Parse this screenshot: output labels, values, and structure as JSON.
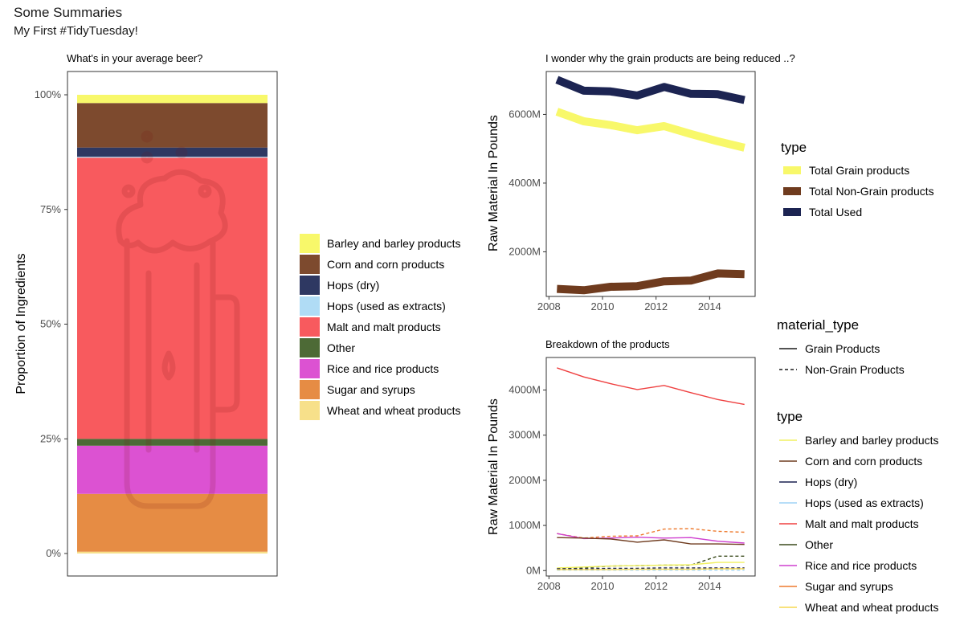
{
  "page": {
    "title": "Some Summaries",
    "subtitle": "My First #TidyTuesday!"
  },
  "colors": {
    "Barley and barley products": "#f8f86a",
    "Corn and corn products": "#7d4a2e",
    "Hops (dry)": "#2e3862",
    "Hops (used as extracts)": "#b0dcf5",
    "Malt and malt products": "#f85a5e",
    "Other": "#4d6a36",
    "Rice and rice products": "#dc52d2",
    "Sugar and syrups": "#e68c44",
    "Wheat and wheat products": "#f7e08a",
    "line_Barley and barley products": "#f0f060",
    "line_Corn and corn products": "#6f3b1e",
    "line_Hops (dry)": "#1a2050",
    "line_Hops (used as extracts)": "#9fd4f5",
    "line_Malt and malt products": "#ef4040",
    "line_Other": "#3a4a1c",
    "line_Rice and rice products": "#cf40cf",
    "line_Sugar and syrups": "#ee7a2e",
    "line_Wheat and wheat products": "#f5d850",
    "Total Grain products": "#f8f86a",
    "Total Non-Grain products": "#6f3b1e",
    "Total Used": "#1c2452"
  },
  "chart_data": [
    {
      "id": "ingredients",
      "type": "bar",
      "title": "What's in your average beer?",
      "xlabel": "",
      "ylabel": "Proportion of Ingredients",
      "ylim": [
        0,
        1.05
      ],
      "yticks": [
        {
          "value": 0,
          "label": "0%"
        },
        {
          "value": 0.25,
          "label": "25%"
        },
        {
          "value": 0.5,
          "label": "50%"
        },
        {
          "value": 0.75,
          "label": "75%"
        },
        {
          "value": 1,
          "label": "100%"
        }
      ],
      "stacked_from_bottom": [
        {
          "name": "Wheat and wheat products",
          "value": 0.004
        },
        {
          "name": "Sugar and syrups",
          "value": 0.126
        },
        {
          "name": "Rice and rice products",
          "value": 0.105
        },
        {
          "name": "Other",
          "value": 0.015
        },
        {
          "name": "Malt and malt products",
          "value": 0.613
        },
        {
          "name": "Hops (used as extracts)",
          "value": 0.002
        },
        {
          "name": "Hops (dry)",
          "value": 0.02
        },
        {
          "name": "Corn and corn products",
          "value": 0.097
        },
        {
          "name": "Barley and barley products",
          "value": 0.018
        }
      ],
      "legend": {
        "placement": "right",
        "items": [
          "Barley and barley products",
          "Corn and corn products",
          "Hops (dry)",
          "Hops (used as extracts)",
          "Malt and malt products",
          "Other",
          "Rice and rice products",
          "Sugar and syrups",
          "Wheat and wheat products"
        ]
      },
      "background_icon": "beer-mug-icon",
      "grid": false
    },
    {
      "id": "totals",
      "type": "line",
      "title": "I wonder why the grain products are being reduced ..?",
      "xlabel": "",
      "ylabel": "Raw Material In Pounds",
      "xlim": [
        2007.9,
        2015.7
      ],
      "ylim": [
        700,
        7250
      ],
      "xticks": [
        2008,
        2010,
        2012,
        2014
      ],
      "yticks": [
        {
          "value": 2000,
          "label": "2000M"
        },
        {
          "value": 4000,
          "label": "4000M"
        },
        {
          "value": 6000,
          "label": "6000M"
        }
      ],
      "x": [
        2008.3,
        2009.3,
        2010.3,
        2011.3,
        2012.3,
        2013.3,
        2014.3,
        2015.3
      ],
      "series": [
        {
          "name": "Total Grain products",
          "values": [
            6080,
            5800,
            5690,
            5540,
            5660,
            5430,
            5220,
            5030
          ]
        },
        {
          "name": "Total Non-Grain products",
          "values": [
            920,
            880,
            980,
            1000,
            1140,
            1160,
            1370,
            1350
          ]
        },
        {
          "name": "Total Used",
          "values": [
            7010,
            6690,
            6670,
            6550,
            6800,
            6600,
            6590,
            6420
          ]
        }
      ],
      "legend": {
        "placement": "right",
        "title": "type"
      },
      "grid": false
    },
    {
      "id": "breakdown",
      "type": "line",
      "title": "Breakdown of the products",
      "xlabel": "",
      "ylabel": "Raw Material In Pounds",
      "xlim": [
        2007.9,
        2015.7
      ],
      "ylim": [
        -120,
        4720
      ],
      "xticks": [
        2008,
        2010,
        2012,
        2014
      ],
      "yticks": [
        {
          "value": 0,
          "label": "0M"
        },
        {
          "value": 1000,
          "label": "1000M"
        },
        {
          "value": 2000,
          "label": "2000M"
        },
        {
          "value": 3000,
          "label": "3000M"
        },
        {
          "value": 4000,
          "label": "4000M"
        }
      ],
      "x": [
        2008.3,
        2009.3,
        2010.3,
        2011.3,
        2012.3,
        2013.3,
        2014.3,
        2015.3
      ],
      "series": [
        {
          "name": "Malt and malt products",
          "material_type": "Grain Products",
          "values": [
            4490,
            4290,
            4140,
            4010,
            4100,
            3940,
            3790,
            3680
          ]
        },
        {
          "name": "Sugar and syrups",
          "material_type": "Non-Grain Products",
          "values": [
            820,
            720,
            760,
            770,
            920,
            930,
            870,
            850
          ]
        },
        {
          "name": "Rice and rice products",
          "material_type": "Grain Products",
          "values": [
            820,
            710,
            720,
            740,
            720,
            730,
            650,
            610
          ]
        },
        {
          "name": "Corn and corn products",
          "material_type": "Grain Products",
          "values": [
            730,
            720,
            700,
            630,
            680,
            590,
            590,
            580
          ]
        },
        {
          "name": "Other",
          "material_type": "Non-Grain Products",
          "values": [
            40,
            60,
            100,
            110,
            120,
            120,
            320,
            320
          ]
        },
        {
          "name": "Barley and barley products",
          "material_type": "Grain Products",
          "values": [
            60,
            80,
            100,
            110,
            120,
            130,
            180,
            180
          ]
        },
        {
          "name": "Hops (dry)",
          "material_type": "Non-Grain Products",
          "values": [
            40,
            40,
            50,
            50,
            60,
            60,
            60,
            60
          ]
        },
        {
          "name": "Hops (used as extracts)",
          "material_type": "Non-Grain Products",
          "values": [
            10,
            10,
            10,
            10,
            10,
            10,
            10,
            10
          ]
        },
        {
          "name": "Wheat and wheat products",
          "material_type": "Grain Products",
          "values": [
            20,
            20,
            20,
            30,
            30,
            30,
            40,
            40
          ]
        }
      ],
      "legends": [
        {
          "title": "material_type",
          "items": [
            {
              "name": "Grain Products",
              "dash": "solid"
            },
            {
              "name": "Non-Grain Products",
              "dash": "dashed"
            }
          ]
        },
        {
          "title": "type",
          "items": [
            "Barley and barley products",
            "Corn and corn products",
            "Hops (dry)",
            "Hops (used as extracts)",
            "Malt and malt products",
            "Other",
            "Rice and rice products",
            "Sugar and syrups",
            "Wheat and wheat products"
          ]
        }
      ],
      "grid": false
    }
  ]
}
